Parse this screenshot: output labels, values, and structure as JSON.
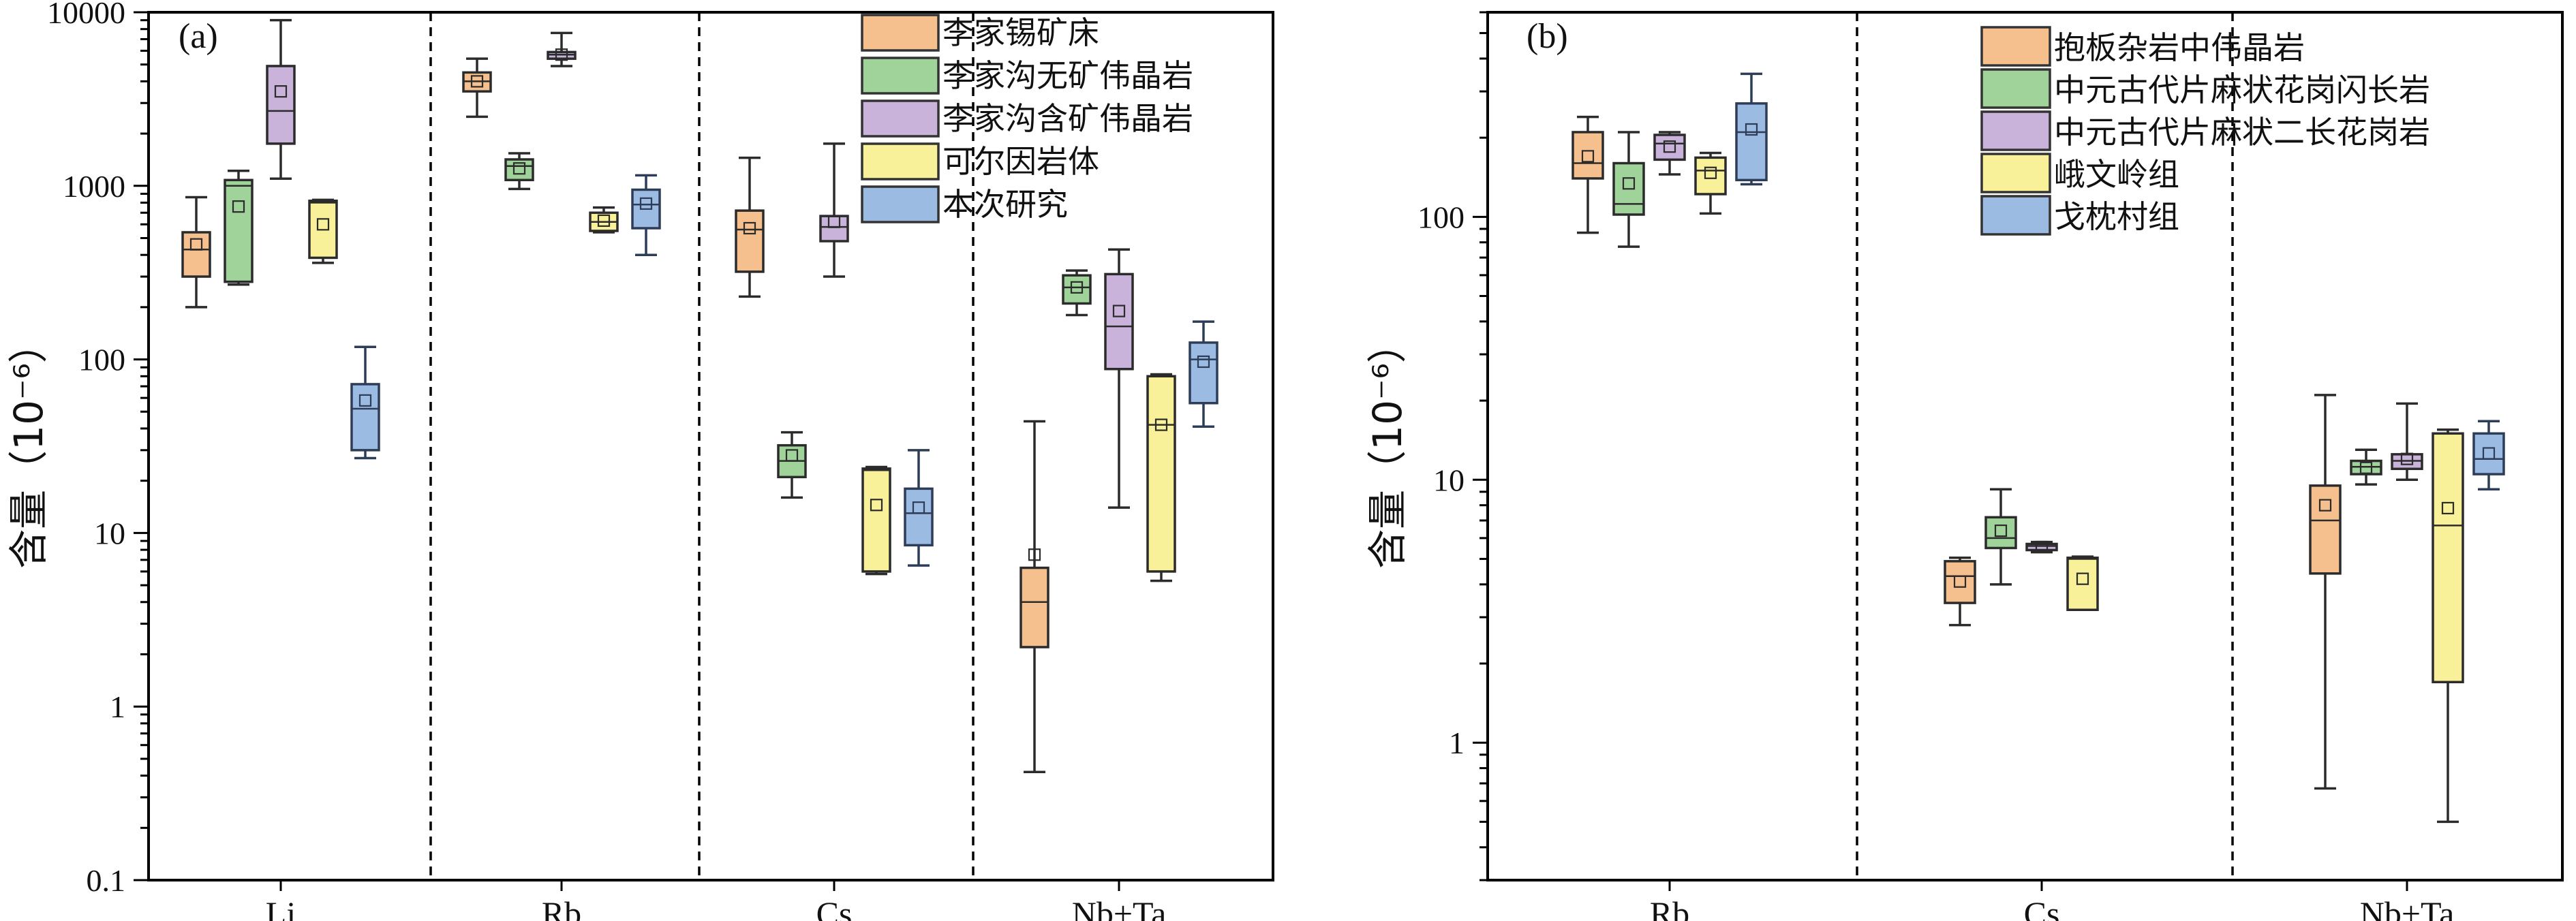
{
  "chart_data": [
    {
      "panel_label": "(a)",
      "type": "box",
      "y_scale": "log",
      "ylim": [
        0.1,
        10000
      ],
      "ylabel": "含量（10⁻⁶）",
      "yticks": [
        "0.1",
        "1",
        "10",
        "100",
        "1000",
        "10000"
      ],
      "categories": [
        "Li",
        "Rb",
        "Cs",
        "Nb+Ta"
      ],
      "legend_position": "top-right",
      "series": [
        {
          "name": "李家锡矿床",
          "color": "#f6c08e",
          "boxes": [
            {
              "category": "Li",
              "whisker_low": 200,
              "q1": 300,
              "median": 430,
              "q3": 540,
              "whisker_high": 860,
              "mean": 460
            },
            {
              "category": "Rb",
              "whisker_low": 2500,
              "q1": 3500,
              "median": 4000,
              "q3": 4500,
              "whisker_high": 5400,
              "mean": 4000
            },
            {
              "category": "Cs",
              "whisker_low": 230,
              "q1": 320,
              "median": 560,
              "q3": 720,
              "whisker_high": 1450,
              "mean": 570
            },
            {
              "category": "Nb+Ta",
              "whisker_low": 0.42,
              "q1": 2.2,
              "median": 4,
              "q3": 6.3,
              "whisker_high": 44,
              "mean": 7.5
            }
          ]
        },
        {
          "name": "李家沟无矿伟晶岩",
          "color": "#9fd39a",
          "boxes": [
            {
              "category": "Li",
              "whisker_low": 270,
              "q1": 280,
              "median": 1000,
              "q3": 1080,
              "whisker_high": 1220,
              "mean": 760
            },
            {
              "category": "Rb",
              "whisker_low": 960,
              "q1": 1080,
              "median": 1300,
              "q3": 1420,
              "whisker_high": 1540,
              "mean": 1260
            },
            {
              "category": "Cs",
              "whisker_low": 16,
              "q1": 21,
              "median": 26,
              "q3": 32,
              "whisker_high": 38,
              "mean": 28
            },
            {
              "category": "Nb+Ta",
              "whisker_low": 180,
              "q1": 210,
              "median": 260,
              "q3": 305,
              "whisker_high": 325,
              "mean": 260
            }
          ]
        },
        {
          "name": "李家沟含矿伟晶岩",
          "color": "#c9b3da",
          "boxes": [
            {
              "category": "Li",
              "whisker_low": 1100,
              "q1": 1750,
              "median": 2700,
              "q3": 4900,
              "whisker_high": 9000,
              "mean": 3500
            },
            {
              "category": "Rb",
              "whisker_low": 4900,
              "q1": 5400,
              "median": 5700,
              "q3": 5900,
              "whisker_high": 7600,
              "mean": 5700
            },
            {
              "category": "Cs",
              "whisker_low": 300,
              "q1": 480,
              "median": 580,
              "q3": 670,
              "whisker_high": 1750,
              "mean": 620
            },
            {
              "category": "Nb+Ta",
              "whisker_low": 14,
              "q1": 88,
              "median": 155,
              "q3": 310,
              "whisker_high": 430,
              "mean": 190
            }
          ]
        },
        {
          "name": "可尔因岩体",
          "color": "#f8f199",
          "boxes": [
            {
              "category": "Li",
              "whisker_low": 360,
              "q1": 385,
              "median": 800,
              "q3": 820,
              "whisker_high": 830,
              "mean": 600
            },
            {
              "category": "Rb",
              "whisker_low": 540,
              "q1": 550,
              "median": 620,
              "q3": 700,
              "whisker_high": 750,
              "mean": 630
            },
            {
              "category": "Cs",
              "whisker_low": 5.8,
              "q1": 6,
              "median": 23,
              "q3": 23.5,
              "whisker_high": 24,
              "mean": 14.5
            },
            {
              "category": "Nb+Ta",
              "whisker_low": 5.3,
              "q1": 6,
              "median": 42,
              "q3": 80,
              "whisker_high": 82,
              "mean": 42
            }
          ]
        },
        {
          "name": "本次研究",
          "color": "#9bbbe2",
          "boxes": [
            {
              "category": "Li",
              "whisker_low": 27,
              "q1": 30,
              "median": 52,
              "q3": 72,
              "whisker_high": 118,
              "mean": 58
            },
            {
              "category": "Rb",
              "whisker_low": 400,
              "q1": 570,
              "median": 780,
              "q3": 950,
              "whisker_high": 1150,
              "mean": 790
            },
            {
              "category": "Cs",
              "whisker_low": 6.5,
              "q1": 8.5,
              "median": 13,
              "q3": 18,
              "whisker_high": 30,
              "mean": 14
            },
            {
              "category": "Nb+Ta",
              "whisker_low": 41,
              "q1": 56,
              "median": 100,
              "q3": 125,
              "whisker_high": 165,
              "mean": 97
            }
          ]
        }
      ]
    },
    {
      "panel_label": "(b)",
      "type": "box",
      "y_scale": "log",
      "ylim": [
        0.3,
        600
      ],
      "ylabel": "含量（10⁻⁶）",
      "yticks": [
        "1",
        "10",
        "100"
      ],
      "categories": [
        "Rb",
        "Cs",
        "Nb+Ta"
      ],
      "legend_position": "top-right",
      "series": [
        {
          "name": "抱板杂岩中伟晶岩",
          "color": "#f6c08e",
          "boxes": [
            {
              "category": "Rb",
              "whisker_low": 87,
              "q1": 140,
              "median": 160,
              "q3": 210,
              "whisker_high": 240,
              "mean": 170
            },
            {
              "category": "Cs",
              "whisker_low": 2.8,
              "q1": 3.4,
              "median": 4.3,
              "q3": 4.9,
              "whisker_high": 5.05,
              "mean": 4.1
            },
            {
              "category": "Nb+Ta",
              "whisker_low": 0.67,
              "q1": 4.4,
              "median": 7,
              "q3": 9.5,
              "whisker_high": 21,
              "mean": 8
            }
          ]
        },
        {
          "name": "中元古代片麻状花岗闪长岩",
          "color": "#9fd39a",
          "boxes": [
            {
              "category": "Rb",
              "whisker_low": 77,
              "q1": 102,
              "median": 112,
              "q3": 160,
              "whisker_high": 210,
              "mean": 134
            },
            {
              "category": "Cs",
              "whisker_low": 4,
              "q1": 5.5,
              "median": 6,
              "q3": 7.2,
              "whisker_high": 9.2,
              "mean": 6.4
            },
            {
              "category": "Nb+Ta",
              "whisker_low": 9.6,
              "q1": 10.5,
              "median": 11.2,
              "q3": 11.8,
              "whisker_high": 13,
              "mean": 11.1
            }
          ]
        },
        {
          "name": "中元古代片麻状二长花岗岩",
          "color": "#c9b3da",
          "boxes": [
            {
              "category": "Rb",
              "whisker_low": 145,
              "q1": 165,
              "median": 190,
              "q3": 205,
              "whisker_high": 210,
              "mean": 185
            },
            {
              "category": "Cs",
              "whisker_low": 5.3,
              "q1": 5.4,
              "median": 5.6,
              "q3": 5.7,
              "whisker_high": 5.8,
              "mean": 5.55
            },
            {
              "category": "Nb+Ta",
              "whisker_low": 10,
              "q1": 11,
              "median": 11.8,
              "q3": 12.5,
              "whisker_high": 19.5,
              "mean": 12
            }
          ]
        },
        {
          "name": "峨文岭组",
          "color": "#f8f199",
          "boxes": [
            {
              "category": "Rb",
              "whisker_low": 103,
              "q1": 122,
              "median": 150,
              "q3": 168,
              "whisker_high": 175,
              "mean": 147
            },
            {
              "category": "Cs",
              "whisker_low": 3.2,
              "q1": 3.2,
              "median": 5,
              "q3": 5.05,
              "whisker_high": 5.1,
              "mean": 4.2
            },
            {
              "category": "Nb+Ta",
              "whisker_low": 0.5,
              "q1": 1.7,
              "median": 6.7,
              "q3": 15,
              "whisker_high": 15.5,
              "mean": 7.8
            }
          ]
        },
        {
          "name": "戈枕村组",
          "color": "#9bbbe2",
          "boxes": [
            {
              "category": "Rb",
              "whisker_low": 133,
              "q1": 138,
              "median": 210,
              "q3": 270,
              "whisker_high": 350,
              "mean": 215
            },
            {
              "category": "Nb+Ta",
              "whisker_low": 9.2,
              "q1": 10.5,
              "median": 12,
              "q3": 15,
              "whisker_high": 16.7,
              "mean": 12.6
            }
          ]
        }
      ]
    }
  ]
}
